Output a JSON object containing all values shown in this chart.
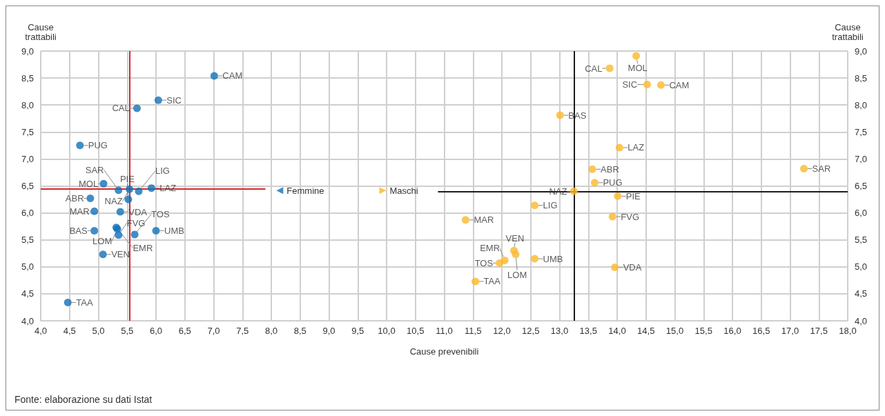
{
  "chart_data": {
    "type": "scatter",
    "xlabel": "Cause prevenibili",
    "ylabel": "Cause trattabili",
    "y2label": "Cause trattabili",
    "xlim": [
      4,
      18
    ],
    "xticks": [
      {
        "value": 4,
        "label": "4,0"
      },
      {
        "value": 4.5,
        "label": "4,5"
      },
      {
        "value": 5,
        "label": "5,0"
      },
      {
        "value": 5.5,
        "label": "5,5"
      },
      {
        "value": 6,
        "label": "6,0"
      },
      {
        "value": 6.5,
        "label": "6,5"
      },
      {
        "value": 7,
        "label": "7,0"
      },
      {
        "value": 7.5,
        "label": "7,5"
      },
      {
        "value": 8,
        "label": "8,0"
      },
      {
        "value": 8.5,
        "label": "8,5"
      },
      {
        "value": 9,
        "label": "9,0"
      },
      {
        "value": 9.5,
        "label": "9,5"
      },
      {
        "value": 10,
        "label": "10,0"
      },
      {
        "value": 10.5,
        "label": "10,5"
      },
      {
        "value": 11,
        "label": "11,0"
      },
      {
        "value": 11.5,
        "label": "11,5"
      },
      {
        "value": 12,
        "label": "12,0"
      },
      {
        "value": 12.5,
        "label": "12,5"
      },
      {
        "value": 13,
        "label": "13,0"
      },
      {
        "value": 13.5,
        "label": "13,5"
      },
      {
        "value": 14,
        "label": "14,0"
      },
      {
        "value": 14.5,
        "label": "14,5"
      },
      {
        "value": 15,
        "label": "15,0"
      },
      {
        "value": 15.5,
        "label": "15,5"
      },
      {
        "value": 16,
        "label": "16,0"
      },
      {
        "value": 16.5,
        "label": "16,5"
      },
      {
        "value": 17,
        "label": "17,0"
      },
      {
        "value": 17.5,
        "label": "17,5"
      },
      {
        "value": 18,
        "label": "18,0"
      }
    ],
    "ylim": [
      4,
      9
    ],
    "yticks": [
      {
        "value": 4,
        "label": "4,0"
      },
      {
        "value": 4.5,
        "label": "4,5"
      },
      {
        "value": 5,
        "label": "5,0"
      },
      {
        "value": 5.5,
        "label": "5,5"
      },
      {
        "value": 6,
        "label": "6,0"
      },
      {
        "value": 6.5,
        "label": "6,5"
      },
      {
        "value": 7,
        "label": "7,0"
      },
      {
        "value": 7.5,
        "label": "7,5"
      },
      {
        "value": 8,
        "label": "8,0"
      },
      {
        "value": 8.5,
        "label": "8,5"
      },
      {
        "value": 9,
        "label": "9,0"
      }
    ],
    "y2lim": [
      4,
      9
    ],
    "y2ticks": [
      {
        "value": 4,
        "label": "4,0"
      },
      {
        "value": 4.5,
        "label": "4,5"
      },
      {
        "value": 5,
        "label": "5,0"
      },
      {
        "value": 5.5,
        "label": "5,5"
      },
      {
        "value": 6,
        "label": "6,0"
      },
      {
        "value": 6.5,
        "label": "6,5"
      },
      {
        "value": 7,
        "label": "7,0"
      },
      {
        "value": 7.5,
        "label": "7,5"
      },
      {
        "value": 8,
        "label": "8,0"
      },
      {
        "value": 8.5,
        "label": "8,5"
      },
      {
        "value": 9,
        "label": "9,0"
      }
    ],
    "grid": true,
    "marker": "circle",
    "legend": "center",
    "series": [
      {
        "name": "Femmine",
        "color": "#1170b8",
        "x": [
          7.01,
          6.04,
          5.67,
          4.68,
          5.09,
          5.35,
          5.54,
          5.7,
          5.92,
          4.86,
          5.52,
          4.93,
          5.38,
          5.31,
          5.33,
          5.35,
          5.63,
          4.93,
          6.0,
          5.08,
          4.47
        ],
        "values": [
          8.54,
          8.09,
          7.94,
          7.25,
          6.54,
          6.42,
          6.44,
          6.4,
          6.46,
          6.27,
          6.25,
          6.03,
          6.02,
          5.73,
          5.7,
          5.59,
          5.6,
          5.67,
          5.67,
          5.23,
          4.34
        ],
        "value_labels": [
          "CAM",
          "SIC",
          "CAL",
          "PUG",
          "MOL",
          "SAR",
          "NAZ",
          "LIG",
          "LAZ",
          "ABR",
          "PIE",
          "MAR",
          "VDA",
          "EMR",
          "LOM",
          "FVG",
          "TOS",
          "BAS",
          "UMB",
          "VEN",
          "TAA"
        ]
      },
      {
        "name": "Maschi",
        "color": "#fbb829",
        "x": [
          14.33,
          13.87,
          14.52,
          14.76,
          13.01,
          14.04,
          13.57,
          17.24,
          13.61,
          13.25,
          14.01,
          12.57,
          11.37,
          13.92,
          12.21,
          12.24,
          12.57,
          12.05,
          11.96,
          11.54,
          13.96
        ],
        "values": [
          8.91,
          8.68,
          8.38,
          8.37,
          7.81,
          7.21,
          6.81,
          6.82,
          6.56,
          6.4,
          6.31,
          6.14,
          5.87,
          5.93,
          5.3,
          5.23,
          5.15,
          5.12,
          5.07,
          4.73,
          4.99
        ],
        "value_labels": [
          "MOL",
          "CAL",
          "SIC",
          "CAM",
          "BAS",
          "LAZ",
          "ABR",
          "SAR",
          "PUG",
          "NAZ",
          "PIE",
          "LIG",
          "MAR",
          "FVG",
          "VEN",
          "LOM",
          "UMB",
          "EMR",
          "TOS",
          "TAA",
          "VDA"
        ]
      }
    ],
    "ref_lines": [
      {
        "axis": "x",
        "value": 5.54,
        "color": "#d7262b"
      },
      {
        "axis": "y",
        "value": 6.44,
        "color": "#d7262b"
      },
      {
        "axis": "x",
        "value": 13.25,
        "color": "#1a1a1a"
      },
      {
        "axis": "y",
        "value": 6.4,
        "color": "#1a1a1a"
      }
    ],
    "annotations": [
      "Fonte: elaborazione su dati Istat"
    ]
  }
}
